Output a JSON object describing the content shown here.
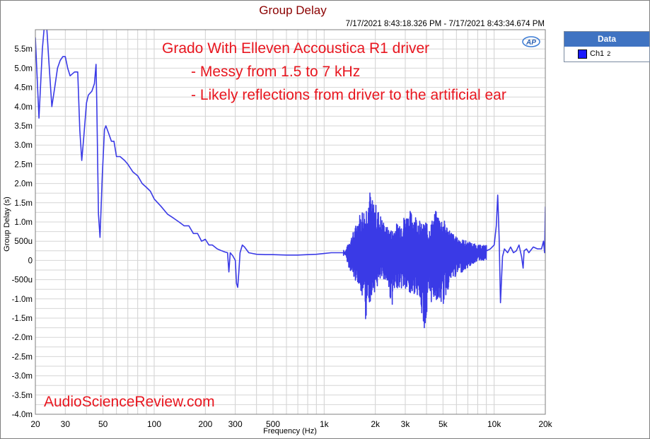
{
  "chart_data": {
    "type": "line",
    "title": "Group Delay",
    "timestamp": "7/17/2021 8:43:18.326 PM - 7/17/2021 8:43:34.674 PM",
    "xlabel": "Frequency (Hz)",
    "ylabel": "Group Delay (s)",
    "xscale": "log",
    "xlim": [
      20,
      20000
    ],
    "ylim": [
      -0.004,
      0.006
    ],
    "grid": true,
    "x_ticks": [
      {
        "value": 20,
        "label": "20"
      },
      {
        "value": 30,
        "label": "30"
      },
      {
        "value": 50,
        "label": "50"
      },
      {
        "value": 100,
        "label": "100"
      },
      {
        "value": 200,
        "label": "200"
      },
      {
        "value": 300,
        "label": "300"
      },
      {
        "value": 500,
        "label": "500"
      },
      {
        "value": 1000,
        "label": "1k"
      },
      {
        "value": 2000,
        "label": "2k"
      },
      {
        "value": 3000,
        "label": "3k"
      },
      {
        "value": 5000,
        "label": "5k"
      },
      {
        "value": 10000,
        "label": "10k"
      },
      {
        "value": 20000,
        "label": "20k"
      }
    ],
    "y_ticks": [
      {
        "value": 0.0055,
        "label": "5.5m"
      },
      {
        "value": 0.005,
        "label": "5.0m"
      },
      {
        "value": 0.0045,
        "label": "4.5m"
      },
      {
        "value": 0.004,
        "label": "4.0m"
      },
      {
        "value": 0.0035,
        "label": "3.5m"
      },
      {
        "value": 0.003,
        "label": "3.0m"
      },
      {
        "value": 0.0025,
        "label": "2.5m"
      },
      {
        "value": 0.002,
        "label": "2.0m"
      },
      {
        "value": 0.0015,
        "label": "1.5m"
      },
      {
        "value": 0.001,
        "label": "1.0m"
      },
      {
        "value": 0.0005,
        "label": "500u"
      },
      {
        "value": 0,
        "label": "0"
      },
      {
        "value": -0.0005,
        "label": "-500u"
      },
      {
        "value": -0.001,
        "label": "-1.0m"
      },
      {
        "value": -0.0015,
        "label": "-1.5m"
      },
      {
        "value": -0.002,
        "label": "-2.0m"
      },
      {
        "value": -0.0025,
        "label": "-2.5m"
      },
      {
        "value": -0.003,
        "label": "-3.0m"
      },
      {
        "value": -0.0035,
        "label": "-3.5m"
      },
      {
        "value": -0.004,
        "label": "-4.0m"
      }
    ],
    "legend": {
      "title": "Data",
      "position": "right",
      "entries": [
        {
          "name": "Ch1",
          "sub": "2",
          "color": "#1a1aff"
        }
      ]
    },
    "series": [
      {
        "name": "Ch1",
        "color": "#3a3ae6",
        "points": [
          [
            20,
            0.0058
          ],
          [
            21,
            0.0037
          ],
          [
            22,
            0.0055
          ],
          [
            23,
            0.0065
          ],
          [
            24,
            0.0052
          ],
          [
            25,
            0.004
          ],
          [
            26,
            0.0045
          ],
          [
            27,
            0.005
          ],
          [
            28,
            0.0052
          ],
          [
            29,
            0.0053
          ],
          [
            30,
            0.0053
          ],
          [
            31,
            0.005
          ],
          [
            32,
            0.0048
          ],
          [
            34,
            0.0049
          ],
          [
            35.5,
            0.0049
          ],
          [
            36.5,
            0.0034
          ],
          [
            37.5,
            0.0026
          ],
          [
            38.5,
            0.0032
          ],
          [
            40,
            0.0041
          ],
          [
            41,
            0.0043
          ],
          [
            43,
            0.0044
          ],
          [
            44.5,
            0.0046
          ],
          [
            45.5,
            0.0051
          ],
          [
            46,
            0.004
          ],
          [
            47,
            0.0012
          ],
          [
            48,
            0.0006
          ],
          [
            49.5,
            0.0022
          ],
          [
            51,
            0.0034
          ],
          [
            52,
            0.0035
          ],
          [
            54,
            0.0033
          ],
          [
            56,
            0.0031
          ],
          [
            58,
            0.0031
          ],
          [
            60,
            0.0027
          ],
          [
            63,
            0.0027
          ],
          [
            67,
            0.0026
          ],
          [
            70,
            0.0025
          ],
          [
            75,
            0.0023
          ],
          [
            80,
            0.0022
          ],
          [
            85,
            0.002
          ],
          [
            90,
            0.0019
          ],
          [
            95,
            0.0018
          ],
          [
            100,
            0.0016
          ],
          [
            110,
            0.0014
          ],
          [
            120,
            0.0012
          ],
          [
            130,
            0.0011
          ],
          [
            140,
            0.001
          ],
          [
            150,
            0.0009
          ],
          [
            160,
            0.0009
          ],
          [
            170,
            0.0007
          ],
          [
            180,
            0.0007
          ],
          [
            190,
            0.0005
          ],
          [
            200,
            0.00055
          ],
          [
            210,
            0.0004
          ],
          [
            220,
            0.0004
          ],
          [
            235,
            0.0003
          ],
          [
            250,
            0.00025
          ],
          [
            260,
            0.00022
          ],
          [
            270,
            0.0002
          ],
          [
            275,
            -0.0003
          ],
          [
            280,
            0.0002
          ],
          [
            290,
            0.00012
          ],
          [
            300,
            0.0
          ],
          [
            305,
            -0.0006
          ],
          [
            310,
            -0.0007
          ],
          [
            315,
            -0.0003
          ],
          [
            320,
            0.0002
          ],
          [
            330,
            0.0004
          ],
          [
            340,
            0.00035
          ],
          [
            360,
            0.0002
          ],
          [
            380,
            0.00018
          ],
          [
            400,
            0.00016
          ],
          [
            450,
            0.00015
          ],
          [
            500,
            0.00015
          ],
          [
            600,
            0.00014
          ],
          [
            700,
            0.00014
          ],
          [
            800,
            0.00015
          ],
          [
            900,
            0.00016
          ],
          [
            1000,
            0.00018
          ],
          [
            1100,
            0.0002
          ],
          [
            1200,
            0.0002
          ],
          [
            1300,
            0.0002
          ]
        ],
        "noise_envelope": [
          [
            1300,
            0.0001,
            0.0003
          ],
          [
            1400,
            0.0005,
            -0.0002
          ],
          [
            1500,
            0.0008,
            -0.0005
          ],
          [
            1600,
            0.0012,
            -0.0006
          ],
          [
            1700,
            0.0014,
            -0.0012
          ],
          [
            1750,
            0.0013,
            -0.0019
          ],
          [
            1800,
            0.0018,
            -0.0008
          ],
          [
            1850,
            0.0019,
            -0.0012
          ],
          [
            1900,
            0.0016,
            -0.0009
          ],
          [
            2000,
            0.0015,
            -0.0008
          ],
          [
            2200,
            0.0011,
            -0.0005
          ],
          [
            2300,
            0.0009,
            -0.0005
          ],
          [
            2500,
            0.0008,
            -0.0012
          ],
          [
            2700,
            0.001,
            -0.0007
          ],
          [
            3000,
            0.0012,
            -0.0008
          ],
          [
            3200,
            0.0013,
            -0.001
          ],
          [
            3500,
            0.0012,
            -0.0008
          ],
          [
            3800,
            0.0009,
            -0.0016
          ],
          [
            3950,
            0.0011,
            -0.0019
          ],
          [
            4100,
            0.0008,
            -0.0012
          ],
          [
            4500,
            0.0013,
            -0.001
          ],
          [
            5000,
            0.0011,
            -0.0012
          ],
          [
            5500,
            0.0008,
            -0.0006
          ],
          [
            6000,
            0.0006,
            -0.0004
          ],
          [
            7000,
            0.0005,
            -0.0002
          ],
          [
            8000,
            0.0004,
            0.0
          ],
          [
            9000,
            0.0004,
            0.0
          ]
        ],
        "tail_points": [
          [
            9000,
            0.00025
          ],
          [
            9500,
            0.0003
          ],
          [
            10000,
            0.0004
          ],
          [
            10300,
            0.0009
          ],
          [
            10500,
            0.0017
          ],
          [
            10700,
            0.0006
          ],
          [
            10900,
            -0.0011
          ],
          [
            11200,
            0.0001
          ],
          [
            11500,
            0.0003
          ],
          [
            12000,
            0.0002
          ],
          [
            12500,
            0.00035
          ],
          [
            13000,
            0.0002
          ],
          [
            13500,
            0.00025
          ],
          [
            14000,
            0.0004
          ],
          [
            14500,
            0.0001
          ],
          [
            14800,
            -0.0002
          ],
          [
            15000,
            0.00025
          ],
          [
            15500,
            0.0003
          ],
          [
            16000,
            0.0002
          ],
          [
            17000,
            0.00035
          ],
          [
            18000,
            0.0003
          ],
          [
            19000,
            0.0003
          ],
          [
            19500,
            0.0005
          ],
          [
            19800,
            0.0002
          ],
          [
            20000,
            0.0014
          ]
        ]
      }
    ],
    "annotations": [
      {
        "text": "Grado With Elleven Accoustica R1 driver",
        "color": "#e8161f"
      },
      {
        "text": "- Messy from 1.5 to 7 kHz",
        "color": "#e8161f"
      },
      {
        "text": "- Likely reflections from driver to the artificial ear",
        "color": "#e8161f"
      },
      {
        "text": "AudioScienceReview.com",
        "color": "#e8161f"
      }
    ],
    "logo": "AP"
  }
}
